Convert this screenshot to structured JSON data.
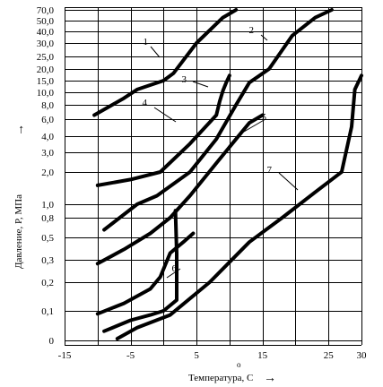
{
  "chart_data": {
    "type": "line",
    "title": "",
    "xlabel": "Температура, С",
    "xlabel_superscript": "o",
    "ylabel": "Давление, P, МПа",
    "x_arrow": "→",
    "y_arrow": "→",
    "xlim": [
      -15,
      30
    ],
    "y_scale": "log",
    "grid": true,
    "x_ticks": [
      -15,
      -5,
      5,
      15,
      25,
      30
    ],
    "x_tick_labels": [
      "-15",
      "-5",
      "5",
      "15",
      "25",
      "30"
    ],
    "y_tick_labels": [
      "0",
      "0,1",
      "0,2",
      "0,3",
      "0,5",
      "0,8",
      "1,0",
      "2,0",
      "3,0",
      "4,0",
      "6,0",
      "8,0",
      "10,0",
      "15,0",
      "20,0",
      "25,0",
      "30,0",
      "40,0",
      "50,0",
      "70,0"
    ],
    "series": [
      {
        "name": "1",
        "points": [
          [
            -10.5,
            6.5
          ],
          [
            -6,
            9
          ],
          [
            -4,
            11
          ],
          [
            0,
            15
          ],
          [
            1.5,
            18
          ],
          [
            5,
            30
          ],
          [
            9,
            55
          ],
          [
            11,
            70
          ]
        ]
      },
      {
        "name": "2",
        "points": [
          [
            -9,
            0.6
          ],
          [
            -4,
            1.0
          ],
          [
            -1,
            1.2
          ],
          [
            4,
            2.0
          ],
          [
            8,
            3.8
          ],
          [
            11,
            8
          ],
          [
            13,
            14
          ],
          [
            16,
            20
          ],
          [
            19.5,
            36
          ],
          [
            23,
            55
          ],
          [
            25.5,
            70
          ]
        ]
      },
      {
        "name": "3",
        "points": [
          [
            -10,
            1.5
          ],
          [
            -5,
            1.7
          ],
          [
            -0.5,
            2.0
          ],
          [
            4,
            3.5
          ],
          [
            8,
            6.5
          ],
          [
            8.5,
            8.5
          ],
          [
            9,
            10.5
          ],
          [
            9.5,
            14
          ],
          [
            10,
            17
          ]
        ]
      },
      {
        "name": "4",
        "points": [
          [
            -10,
            0.28
          ],
          [
            -6,
            0.38
          ],
          [
            -2,
            0.55
          ],
          [
            1,
            0.8
          ],
          [
            4,
            1.2
          ],
          [
            8,
            2.4
          ],
          [
            11,
            3.8
          ],
          [
            13,
            5.5
          ],
          [
            15,
            6.5
          ]
        ]
      },
      {
        "name": "5",
        "points": [
          [
            -10,
            0.085
          ],
          [
            -6,
            0.12
          ],
          [
            -2,
            0.17
          ],
          [
            -0.5,
            0.22
          ],
          [
            1,
            0.35
          ],
          [
            3,
            0.45
          ],
          [
            4.5,
            0.55
          ]
        ]
      },
      {
        "name": "6",
        "points": [
          [
            -9,
            0.033
          ],
          [
            -5,
            0.06
          ],
          [
            -2,
            0.08
          ],
          [
            0,
            0.1
          ],
          [
            2,
            0.13
          ],
          [
            2,
            0.2
          ],
          [
            2,
            0.35
          ],
          [
            1.8,
            0.9
          ]
        ]
      },
      {
        "name": "7",
        "points": [
          [
            -7,
            0.022
          ],
          [
            -4,
            0.04
          ],
          [
            1,
            0.08
          ],
          [
            7,
            0.2
          ],
          [
            13,
            0.45
          ],
          [
            18,
            0.8
          ],
          [
            23,
            1.3
          ],
          [
            27,
            2.0
          ],
          [
            28.5,
            5
          ],
          [
            29,
            11
          ],
          [
            30,
            17
          ]
        ]
      }
    ],
    "curve_labels": [
      "1",
      "2",
      "3",
      "4",
      "5",
      "6",
      "7"
    ]
  }
}
